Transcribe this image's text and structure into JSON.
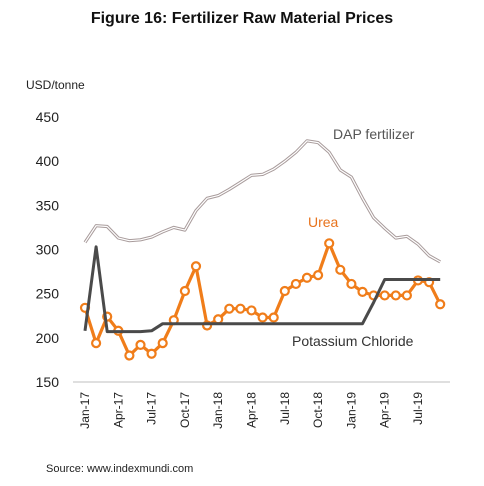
{
  "title": "Figure 16: Fertilizer Raw Material Prices",
  "source": "Source: www.indexmundi.com",
  "chart_data": {
    "type": "line",
    "ylabel": "USD/tonne",
    "ylim": [
      150,
      450
    ],
    "yticks": [
      150,
      200,
      250,
      300,
      350,
      400,
      450
    ],
    "grid": false,
    "legend": "inline labels",
    "x": [
      "Jan-17",
      "Feb-17",
      "Mar-17",
      "Apr-17",
      "May-17",
      "Jun-17",
      "Jul-17",
      "Aug-17",
      "Sep-17",
      "Oct-17",
      "Nov-17",
      "Dec-17",
      "Jan-18",
      "Feb-18",
      "Mar-18",
      "Apr-18",
      "May-18",
      "Jun-18",
      "Jul-18",
      "Aug-18",
      "Sep-18",
      "Oct-18",
      "Nov-18",
      "Dec-18",
      "Jan-19",
      "Feb-19",
      "Mar-19",
      "Apr-19",
      "May-19",
      "Jun-19",
      "Jul-19",
      "Aug-19",
      "Sep-19"
    ],
    "xticklabels": [
      "Jan-17",
      "Apr-17",
      "Jul-17",
      "Oct-17",
      "Jan-18",
      "Apr-18",
      "Jul-18",
      "Oct-18",
      "Jan-19",
      "Apr-19",
      "Jul-19"
    ],
    "series": [
      {
        "name": "DAP fertilizer",
        "color": "#a89b9b",
        "markers": false,
        "values": [
          308,
          327,
          326,
          313,
          310,
          311,
          314,
          320,
          325,
          322,
          344,
          358,
          361,
          368,
          376,
          384,
          385,
          391,
          400,
          410,
          423,
          421,
          410,
          390,
          382,
          358,
          336,
          324,
          313,
          315,
          306,
          293,
          286
        ]
      },
      {
        "name": "Urea",
        "color": "#f07d1a",
        "markers": true,
        "values": [
          234,
          194,
          224,
          208,
          180,
          192,
          182,
          194,
          220,
          253,
          281,
          214,
          221,
          233,
          233,
          231,
          223,
          223,
          253,
          261,
          268,
          271,
          307,
          277,
          261,
          252,
          248,
          248,
          248,
          248,
          265,
          263,
          238
        ]
      },
      {
        "name": "Potassium Chloride",
        "color": "#4a4a4a",
        "markers": false,
        "values": [
          208,
          303,
          207,
          207,
          207,
          207,
          208,
          216,
          216,
          216,
          216,
          216,
          216,
          216,
          216,
          216,
          216,
          216,
          216,
          216,
          216,
          216,
          216,
          216,
          216,
          216,
          240,
          266,
          266,
          266,
          266,
          266,
          266
        ]
      }
    ],
    "series_label_colors": {
      "DAP fertilizer": "#555555",
      "Urea": "#e8731c",
      "Potassium Chloride": "#333333"
    }
  }
}
